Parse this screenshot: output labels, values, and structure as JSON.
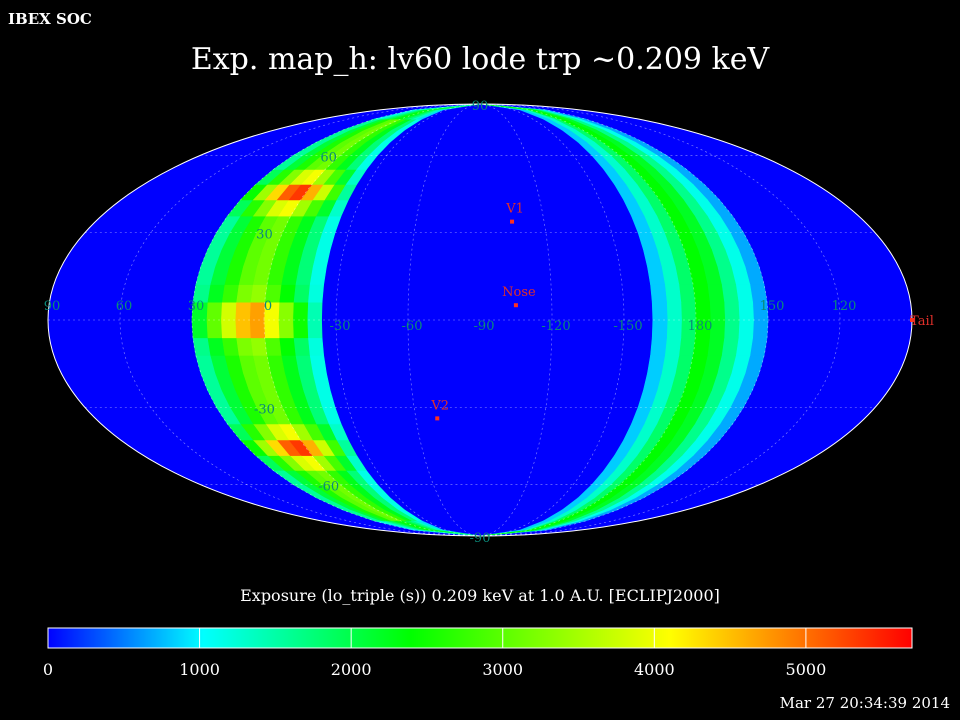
{
  "header": {
    "org": "IBEX SOC",
    "title": "Exp.   map_h: lv60 lode trp ~0.209 keV",
    "timestamp": "Mar 27 20:34:39 2014"
  },
  "chart_data": {
    "type": "heatmap",
    "projection": "Mollweide (ecliptic J2000)",
    "title": "Exp.   map_h: lv60 lode trp ~0.209 keV",
    "colorbar_label": "Exposure (lo_triple (s))  0.209 keV at 1.0 A.U. [ECLIPJ2000]",
    "colorbar_ticks": [
      "0",
      "1000",
      "2000",
      "3000",
      "4000",
      "5000"
    ],
    "colorbar_range": [
      0,
      5700
    ],
    "colormap": [
      "#0000ff",
      "#00ffff",
      "#00ff00",
      "#ffff00",
      "#ff0000"
    ],
    "background_color": "#0000ff",
    "grid": true,
    "longitude_labels": [
      "60",
      "30",
      "0",
      "-30",
      "-60",
      "-90",
      "-120",
      "-150",
      "180",
      "150",
      "120",
      "90"
    ],
    "latitude_labels": [
      "90",
      "60",
      "30",
      "0",
      "-30",
      "-60",
      "-90"
    ],
    "longitude_center": -90,
    "markers": [
      {
        "label": "Nose",
        "lon": -105,
        "lat": 5
      },
      {
        "label": "V1",
        "lon": -105,
        "lat": 34
      },
      {
        "label": "V2",
        "lon": -70,
        "lat": -34
      },
      {
        "label": "Tail",
        "lon": 75,
        "lat": 0
      }
    ],
    "bands": [
      {
        "name": "left",
        "center_lon": 5,
        "width_deg": 55,
        "peak_exposure": 5600,
        "peak_lats": [
          45,
          0,
          -45
        ]
      },
      {
        "name": "right",
        "center_lon": 175,
        "width_deg": 50,
        "peak_exposure": 2600
      }
    ]
  }
}
